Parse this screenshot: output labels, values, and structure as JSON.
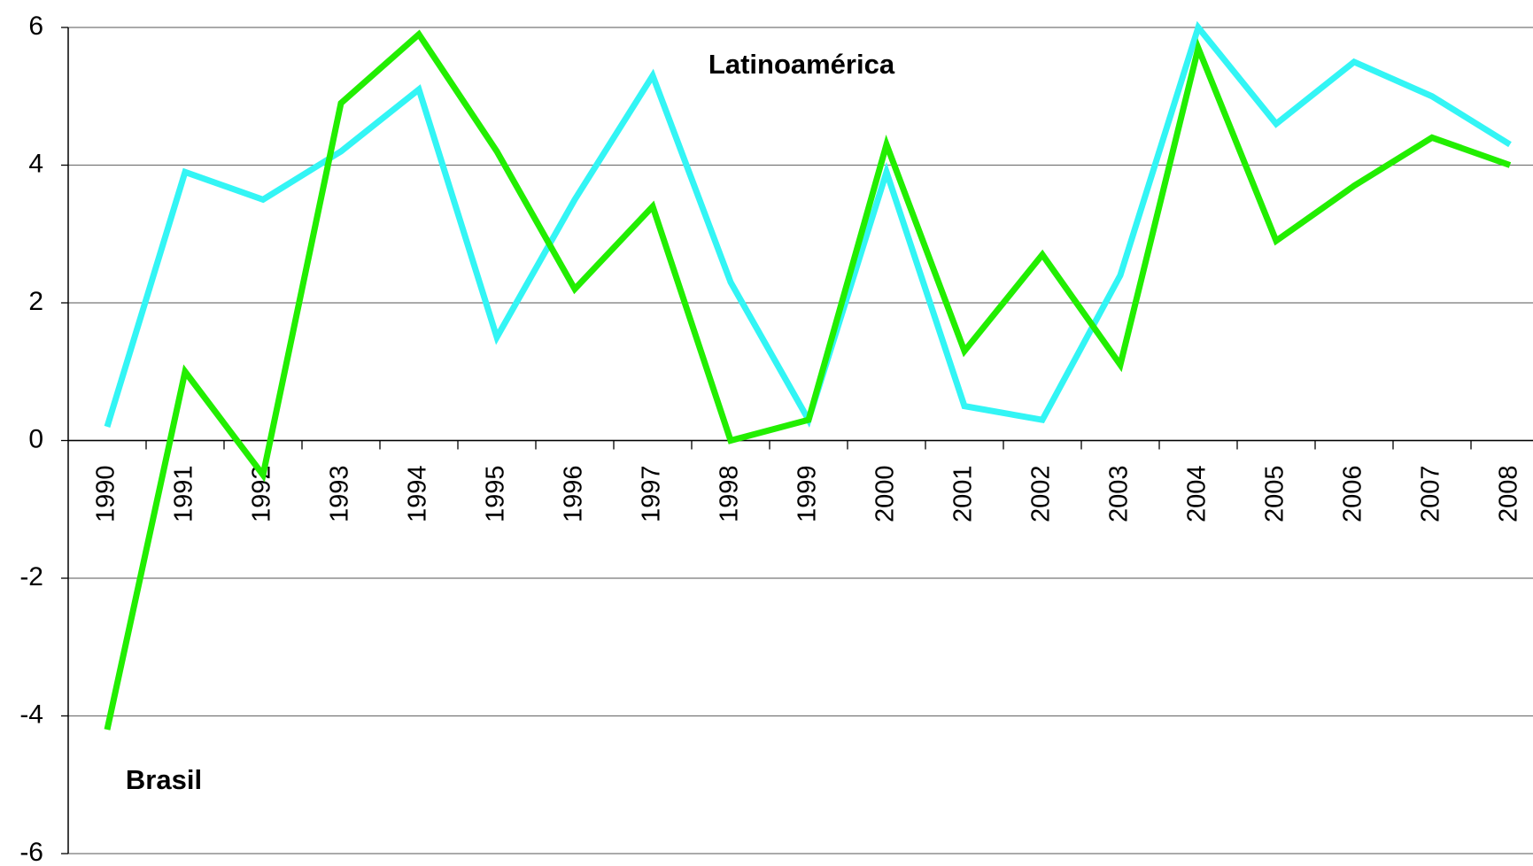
{
  "chart_data": {
    "type": "line",
    "categories": [
      "1990",
      "1991",
      "1992",
      "1993",
      "1994",
      "1995",
      "1996",
      "1997",
      "1998",
      "1999",
      "2000",
      "2001",
      "2002",
      "2003",
      "2004",
      "2005",
      "2006",
      "2007",
      "2008"
    ],
    "series": [
      {
        "name": "Latinoamérica",
        "color": "#33f5f5",
        "values": [
          0.2,
          3.9,
          3.5,
          4.2,
          5.1,
          1.5,
          3.5,
          5.3,
          2.3,
          0.3,
          3.9,
          0.5,
          0.3,
          2.4,
          6.0,
          4.6,
          5.5,
          5.0,
          4.3
        ]
      },
      {
        "name": "Brasil",
        "color": "#22ee00",
        "values": [
          -4.2,
          1.0,
          -0.5,
          4.9,
          5.9,
          4.2,
          2.2,
          3.4,
          0.0,
          0.3,
          4.3,
          1.3,
          2.7,
          1.1,
          5.7,
          2.9,
          3.7,
          4.4,
          4.0
        ]
      }
    ],
    "ylim": [
      -6,
      6
    ],
    "yticks": [
      -6,
      -4,
      -2,
      0,
      2,
      4,
      6
    ],
    "grid": true
  }
}
